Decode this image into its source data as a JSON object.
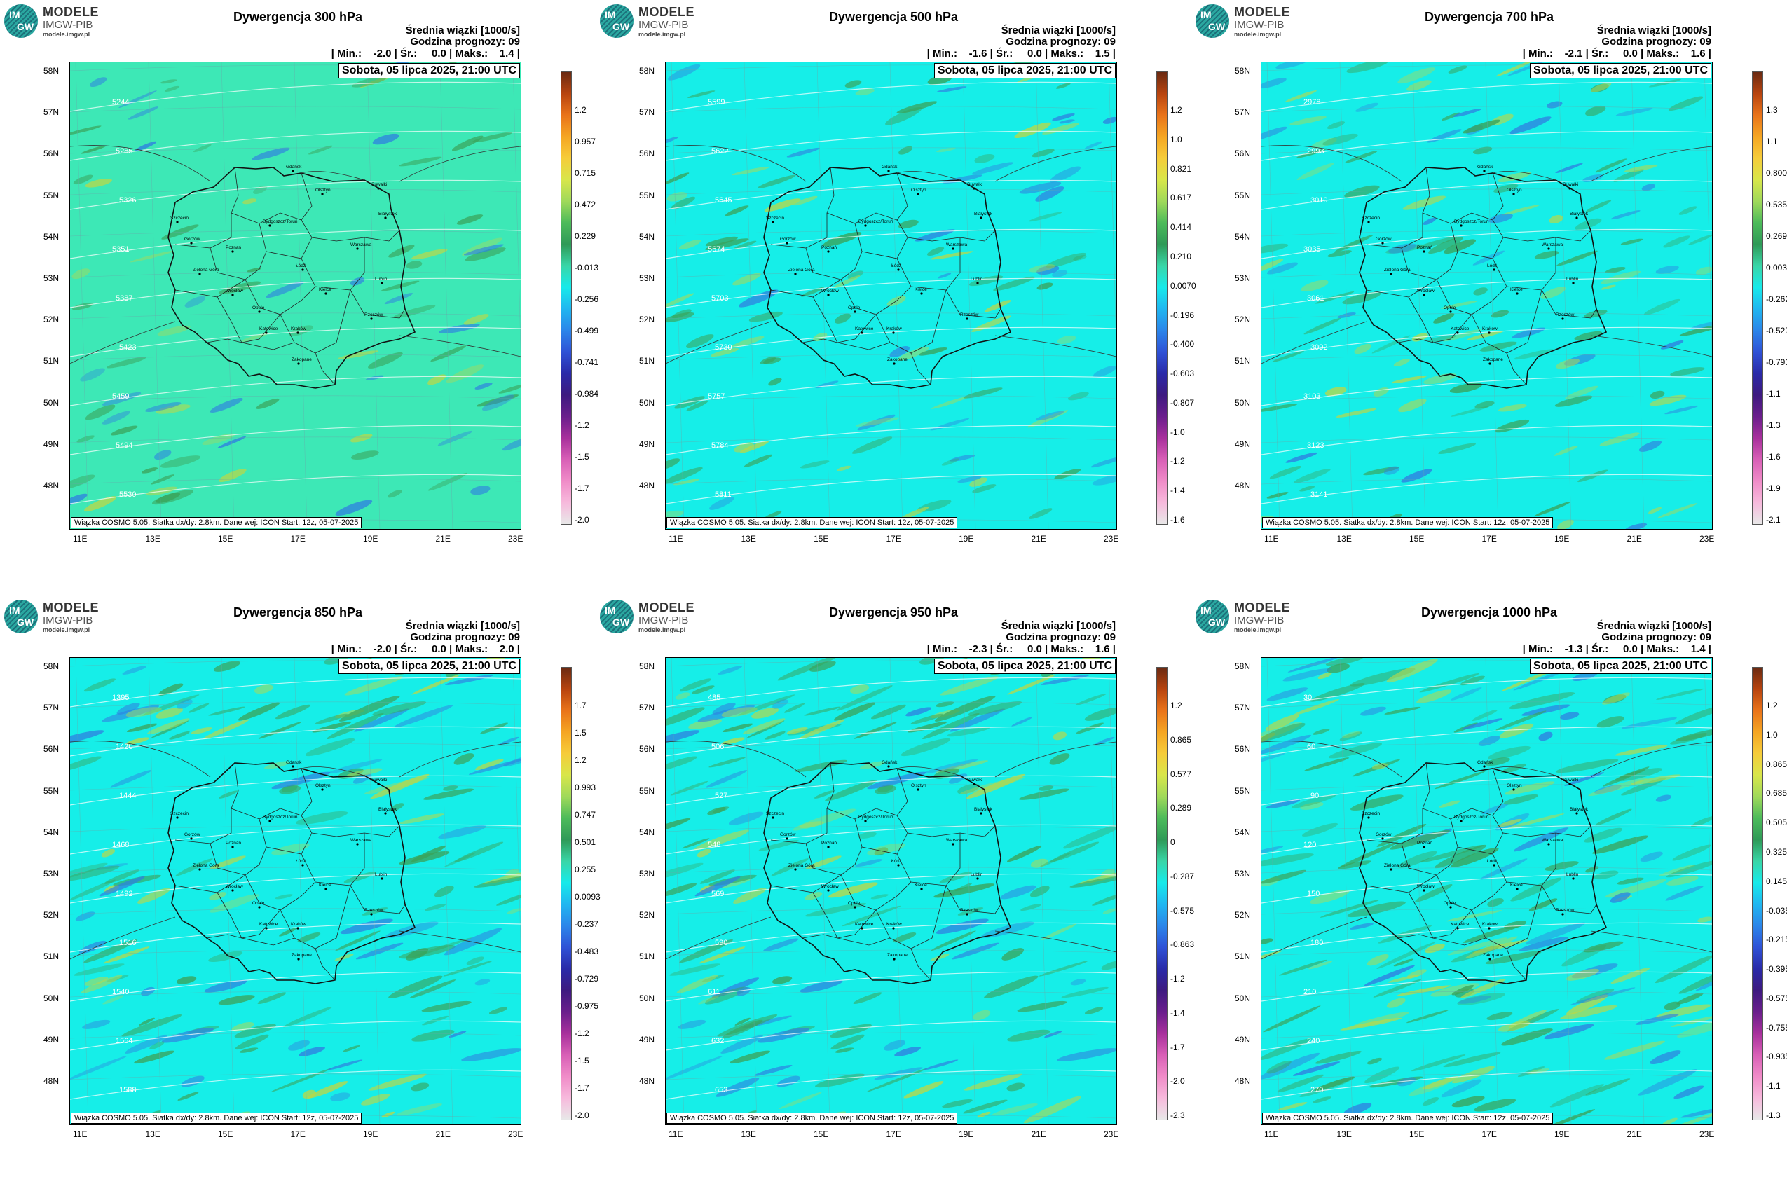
{
  "panels": [
    {
      "title": "Dywergencja 300 hPa",
      "units": "Średnia wiązki [1000/s]",
      "forecast_hour": "Godzina prognozy: 09",
      "stats": "| Min.:    -2.0 | Śr.:     0.0 | Maks.:    1.4 |",
      "date": "Sobota, 05 lipca 2025, 21:00 UTC",
      "footer": "Wiązka COSMO 5.05. Siatka dx/dy: 2.8km. Dane wej: ICON Start: 12z, 05-07-2025",
      "base_color": "#3de8b6",
      "colorbar_ticks": [
        "1.2",
        "0.957",
        "0.715",
        "0.472",
        "0.229",
        "-0.013",
        "-0.256",
        "-0.499",
        "-0.741",
        "-0.984",
        "-1.2",
        "-1.5",
        "-1.7",
        "-2.0"
      ],
      "isolines": [
        "5244",
        "5285",
        "5326",
        "5351",
        "5387",
        "5423",
        "5459",
        "5494",
        "5530"
      ]
    },
    {
      "title": "Dywergencja 500 hPa",
      "units": "Średnia wiązki [1000/s]",
      "forecast_hour": "Godzina prognozy: 09",
      "stats": "| Min.:    -1.6 | Śr.:     0.0 | Maks.:    1.5 |",
      "date": "Sobota, 05 lipca 2025, 21:00 UTC",
      "footer": "Wiązka COSMO 5.05. Siatka dx/dy: 2.8km. Dane wej: ICON Start: 12z, 05-07-2025",
      "base_color": "#16eee8",
      "colorbar_ticks": [
        "1.2",
        "1.0",
        "0.821",
        "0.617",
        "0.414",
        "0.210",
        "0.0070",
        "-0.196",
        "-0.400",
        "-0.603",
        "-0.807",
        "-1.0",
        "-1.2",
        "-1.4",
        "-1.6"
      ],
      "isolines": [
        "5599",
        "5622",
        "5645",
        "5674",
        "5703",
        "5730",
        "5757",
        "5784",
        "5811"
      ]
    },
    {
      "title": "Dywergencja 700 hPa",
      "units": "Średnia wiązki [1000/s]",
      "forecast_hour": "Godzina prognozy: 09",
      "stats": "| Min.:    -2.1 | Śr.:     0.0 | Maks.:    1.6 |",
      "date": "Sobota, 05 lipca 2025, 21:00 UTC",
      "footer": "Wiązka COSMO 5.05. Siatka dx/dy: 2.8km. Dane wej: ICON Start: 12z, 05-07-2025",
      "base_color": "#16eee8",
      "colorbar_ticks": [
        "1.3",
        "1.1",
        "0.800",
        "0.535",
        "0.269",
        "0.0035",
        "-0.262",
        "-0.527",
        "-0.793",
        "-1.1",
        "-1.3",
        "-1.6",
        "-1.9",
        "-2.1"
      ],
      "isolines": [
        "2978",
        "2993",
        "3010",
        "3035",
        "3061",
        "3092",
        "3103",
        "3123",
        "3141"
      ]
    },
    {
      "title": "Dywergencja 850 hPa",
      "units": "Średnia wiązki [1000/s]",
      "forecast_hour": "Godzina prognozy: 09",
      "stats": "| Min.:    -2.0 | Śr.:     0.0 | Maks.:    2.0 |",
      "date": "Sobota, 05 lipca 2025, 21:00 UTC",
      "footer": "Wiązka COSMO 5.05. Siatka dx/dy: 2.8km. Dane wej: ICON Start: 12z, 05-07-2025",
      "base_color": "#16eee8",
      "colorbar_ticks": [
        "1.7",
        "1.5",
        "1.2",
        "0.993",
        "0.747",
        "0.501",
        "0.255",
        "0.0093",
        "-0.237",
        "-0.483",
        "-0.729",
        "-0.975",
        "-1.2",
        "-1.5",
        "-1.7",
        "-2.0"
      ],
      "isolines": [
        "1395",
        "1420",
        "1444",
        "1468",
        "1492",
        "1516",
        "1540",
        "1564",
        "1588"
      ]
    },
    {
      "title": "Dywergencja 950 hPa",
      "units": "Średnia wiązki [1000/s]",
      "forecast_hour": "Godzina prognozy: 09",
      "stats": "| Min.:    -2.3 | Śr.:     0.0 | Maks.:    1.6 |",
      "date": "Sobota, 05 lipca 2025, 21:00 UTC",
      "footer": "Wiązka COSMO 5.05. Siatka dx/dy: 2.8km. Dane wej: ICON Start: 12z, 05-07-2025",
      "base_color": "#16eee8",
      "colorbar_ticks": [
        "1.2",
        "0.865",
        "0.577",
        "0.289",
        "0",
        "-0.287",
        "-0.575",
        "-0.863",
        "-1.2",
        "-1.4",
        "-1.7",
        "-2.0",
        "-2.3"
      ],
      "isolines": [
        "485",
        "506",
        "527",
        "548",
        "569",
        "590",
        "611",
        "632",
        "653"
      ]
    },
    {
      "title": "Dywergencja 1000 hPa",
      "units": "Średnia wiązki [1000/s]",
      "forecast_hour": "Godzina prognozy: 09",
      "stats": "| Min.:    -1.3 | Śr.:     0.0 | Maks.:    1.4 |",
      "date": "Sobota, 05 lipca 2025, 21:00 UTC",
      "footer": "Wiązka COSMO 5.05. Siatka dx/dy: 2.8km. Dane wej: ICON Start: 12z, 05-07-2025",
      "base_color": "#16eee8",
      "colorbar_ticks": [
        "1.2",
        "1.0",
        "0.865",
        "0.685",
        "0.505",
        "0.325",
        "0.145",
        "-0.035",
        "-0.215",
        "-0.395",
        "-0.575",
        "-0.755",
        "-0.935",
        "-1.1",
        "-1.3"
      ],
      "isolines": [
        "30",
        "60",
        "90",
        "120",
        "150",
        "180",
        "210",
        "240",
        "270"
      ]
    }
  ],
  "logo": {
    "title": "MODELE",
    "subtitle": "IMGW-PIB",
    "url": "modele.imgw.pl",
    "mark_top": "IM",
    "mark_bottom": "GW"
  },
  "lat_labels": [
    "58N",
    "57N",
    "56N",
    "55N",
    "54N",
    "53N",
    "52N",
    "51N",
    "50N",
    "49N",
    "48N"
  ],
  "lon_labels": [
    "11E",
    "13E",
    "15E",
    "17E",
    "19E",
    "21E",
    "23E"
  ],
  "cities": [
    "Gdańsk",
    "Olsztyn",
    "Suwałki",
    "Szczecin",
    "Białystok",
    "Bydgoszcz/Toruń",
    "Gorzów",
    "Poznań",
    "Warszawa",
    "Zielona Góra",
    "Łódź",
    "Lublin",
    "Wrocław",
    "Kielce",
    "Opole",
    "Rzeszów",
    "Katowice",
    "Kraków",
    "Zakopane"
  ],
  "colorbar_palette": [
    "#6b2a12",
    "#b8440f",
    "#e9731a",
    "#f5a623",
    "#f6cc3a",
    "#d8e64a",
    "#9fd95a",
    "#4dbb5a",
    "#2f9a58",
    "#39d6a8",
    "#17eaea",
    "#20b6f0",
    "#2b86ea",
    "#2f52d6",
    "#2a2aa8",
    "#3d1a80",
    "#6a1e8c",
    "#a8309c",
    "#d85fb6",
    "#f08cc8",
    "#f7b9dc",
    "#e8e8e8"
  ]
}
